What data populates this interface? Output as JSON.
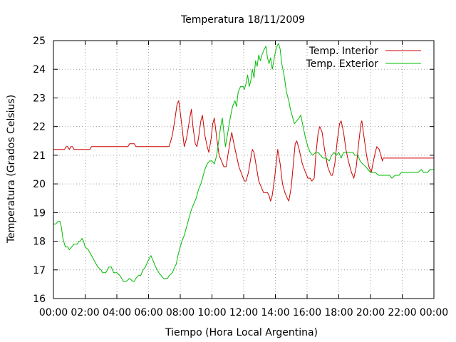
{
  "chart_data": {
    "type": "line",
    "title": "Temperatura 18/11/2009",
    "xlabel": "Tiempo (Hora Local Argentina)",
    "ylabel": "Temperatura (Grados Celsius)",
    "xlim": [
      0,
      24
    ],
    "ylim": [
      16,
      25
    ],
    "grid": true,
    "legend_position": "top-right",
    "x_ticks": [
      {
        "value": 0,
        "label": "00:00"
      },
      {
        "value": 2,
        "label": "02:00"
      },
      {
        "value": 4,
        "label": "04:00"
      },
      {
        "value": 6,
        "label": "06:00"
      },
      {
        "value": 8,
        "label": "08:00"
      },
      {
        "value": 10,
        "label": "10:00"
      },
      {
        "value": 12,
        "label": "12:00"
      },
      {
        "value": 14,
        "label": "14:00"
      },
      {
        "value": 16,
        "label": "16:00"
      },
      {
        "value": 18,
        "label": "18:00"
      },
      {
        "value": 20,
        "label": "20:00"
      },
      {
        "value": 22,
        "label": "22:00"
      },
      {
        "value": 24,
        "label": "00:00"
      }
    ],
    "y_ticks": [
      {
        "value": 16,
        "label": "16"
      },
      {
        "value": 17,
        "label": "17"
      },
      {
        "value": 18,
        "label": "18"
      },
      {
        "value": 19,
        "label": "19"
      },
      {
        "value": 20,
        "label": "20"
      },
      {
        "value": 21,
        "label": "21"
      },
      {
        "value": 22,
        "label": "22"
      },
      {
        "value": 23,
        "label": "23"
      },
      {
        "value": 24,
        "label": "24"
      },
      {
        "value": 25,
        "label": "25"
      }
    ],
    "series": [
      {
        "name": "Temp. Interior",
        "color": "#cc0000",
        "points": [
          [
            0.0,
            21.2
          ],
          [
            0.4,
            21.2
          ],
          [
            0.7,
            21.2
          ],
          [
            0.8,
            21.3
          ],
          [
            0.9,
            21.3
          ],
          [
            1.0,
            21.2
          ],
          [
            1.1,
            21.3
          ],
          [
            1.2,
            21.3
          ],
          [
            1.3,
            21.2
          ],
          [
            1.6,
            21.2
          ],
          [
            2.3,
            21.2
          ],
          [
            2.4,
            21.3
          ],
          [
            4.7,
            21.3
          ],
          [
            4.8,
            21.4
          ],
          [
            5.1,
            21.4
          ],
          [
            5.2,
            21.3
          ],
          [
            7.3,
            21.3
          ],
          [
            7.5,
            21.7
          ],
          [
            7.65,
            22.2
          ],
          [
            7.8,
            22.8
          ],
          [
            7.9,
            22.9
          ],
          [
            8.0,
            22.5
          ],
          [
            8.15,
            21.8
          ],
          [
            8.25,
            21.3
          ],
          [
            8.4,
            21.6
          ],
          [
            8.6,
            22.3
          ],
          [
            8.7,
            22.6
          ],
          [
            8.8,
            22.0
          ],
          [
            8.95,
            21.4
          ],
          [
            9.05,
            21.3
          ],
          [
            9.15,
            21.6
          ],
          [
            9.3,
            22.2
          ],
          [
            9.4,
            22.4
          ],
          [
            9.55,
            21.7
          ],
          [
            9.7,
            21.3
          ],
          [
            9.8,
            21.1
          ],
          [
            9.95,
            21.6
          ],
          [
            10.05,
            22.1
          ],
          [
            10.15,
            22.3
          ],
          [
            10.3,
            21.6
          ],
          [
            10.45,
            21.0
          ],
          [
            10.6,
            20.8
          ],
          [
            10.75,
            20.6
          ],
          [
            10.9,
            20.6
          ],
          [
            11.0,
            21.0
          ],
          [
            11.15,
            21.5
          ],
          [
            11.25,
            21.8
          ],
          [
            11.35,
            21.5
          ],
          [
            11.5,
            21.1
          ],
          [
            11.7,
            20.6
          ],
          [
            11.9,
            20.3
          ],
          [
            12.05,
            20.1
          ],
          [
            12.15,
            20.1
          ],
          [
            12.3,
            20.4
          ],
          [
            12.45,
            20.9
          ],
          [
            12.55,
            21.2
          ],
          [
            12.65,
            21.1
          ],
          [
            12.8,
            20.6
          ],
          [
            12.95,
            20.1
          ],
          [
            13.1,
            19.9
          ],
          [
            13.25,
            19.7
          ],
          [
            13.5,
            19.7
          ],
          [
            13.6,
            19.6
          ],
          [
            13.7,
            19.4
          ],
          [
            13.8,
            19.6
          ],
          [
            13.95,
            20.2
          ],
          [
            14.05,
            20.7
          ],
          [
            14.15,
            21.2
          ],
          [
            14.3,
            20.7
          ],
          [
            14.45,
            20.0
          ],
          [
            14.6,
            19.7
          ],
          [
            14.75,
            19.5
          ],
          [
            14.85,
            19.4
          ],
          [
            15.0,
            19.9
          ],
          [
            15.15,
            20.8
          ],
          [
            15.25,
            21.4
          ],
          [
            15.35,
            21.5
          ],
          [
            15.5,
            21.2
          ],
          [
            15.7,
            20.7
          ],
          [
            15.9,
            20.4
          ],
          [
            16.05,
            20.2
          ],
          [
            16.2,
            20.2
          ],
          [
            16.3,
            20.1
          ],
          [
            16.45,
            20.2
          ],
          [
            16.55,
            21.0
          ],
          [
            16.7,
            21.8
          ],
          [
            16.8,
            22.0
          ],
          [
            16.95,
            21.8
          ],
          [
            17.1,
            21.2
          ],
          [
            17.3,
            20.6
          ],
          [
            17.5,
            20.3
          ],
          [
            17.6,
            20.3
          ],
          [
            17.75,
            20.7
          ],
          [
            17.9,
            21.5
          ],
          [
            18.05,
            22.1
          ],
          [
            18.15,
            22.2
          ],
          [
            18.3,
            21.8
          ],
          [
            18.45,
            21.2
          ],
          [
            18.6,
            20.8
          ],
          [
            18.8,
            20.4
          ],
          [
            18.95,
            20.2
          ],
          [
            19.1,
            20.6
          ],
          [
            19.25,
            21.4
          ],
          [
            19.4,
            22.1
          ],
          [
            19.45,
            22.2
          ],
          [
            19.6,
            21.6
          ],
          [
            19.75,
            21.0
          ],
          [
            19.9,
            20.6
          ],
          [
            20.05,
            20.4
          ],
          [
            20.15,
            20.7
          ],
          [
            20.3,
            21.1
          ],
          [
            20.4,
            21.3
          ],
          [
            20.55,
            21.2
          ],
          [
            20.65,
            21.0
          ],
          [
            20.75,
            20.8
          ],
          [
            20.8,
            20.9
          ],
          [
            24.0,
            20.9
          ]
        ]
      },
      {
        "name": "Temp. Exterior",
        "color": "#00bb00",
        "points": [
          [
            0.0,
            18.6
          ],
          [
            0.15,
            18.6
          ],
          [
            0.3,
            18.7
          ],
          [
            0.4,
            18.7
          ],
          [
            0.5,
            18.5
          ],
          [
            0.6,
            18.1
          ],
          [
            0.75,
            17.8
          ],
          [
            0.9,
            17.8
          ],
          [
            1.0,
            17.7
          ],
          [
            1.15,
            17.8
          ],
          [
            1.3,
            17.9
          ],
          [
            1.5,
            17.9
          ],
          [
            1.6,
            18.0
          ],
          [
            1.7,
            18.0
          ],
          [
            1.8,
            18.1
          ],
          [
            1.9,
            18.0
          ],
          [
            2.0,
            17.8
          ],
          [
            2.2,
            17.7
          ],
          [
            2.4,
            17.5
          ],
          [
            2.6,
            17.3
          ],
          [
            2.8,
            17.1
          ],
          [
            3.0,
            17.0
          ],
          [
            3.1,
            16.9
          ],
          [
            3.3,
            16.9
          ],
          [
            3.4,
            17.0
          ],
          [
            3.5,
            17.1
          ],
          [
            3.65,
            17.1
          ],
          [
            3.8,
            16.9
          ],
          [
            4.0,
            16.9
          ],
          [
            4.2,
            16.8
          ],
          [
            4.3,
            16.7
          ],
          [
            4.4,
            16.6
          ],
          [
            4.6,
            16.6
          ],
          [
            4.8,
            16.7
          ],
          [
            5.0,
            16.6
          ],
          [
            5.1,
            16.6
          ],
          [
            5.2,
            16.7
          ],
          [
            5.35,
            16.8
          ],
          [
            5.5,
            16.8
          ],
          [
            5.65,
            17.0
          ],
          [
            5.8,
            17.1
          ],
          [
            5.95,
            17.3
          ],
          [
            6.05,
            17.4
          ],
          [
            6.15,
            17.5
          ],
          [
            6.3,
            17.3
          ],
          [
            6.45,
            17.1
          ],
          [
            6.65,
            16.9
          ],
          [
            6.8,
            16.8
          ],
          [
            6.95,
            16.7
          ],
          [
            7.2,
            16.7
          ],
          [
            7.3,
            16.8
          ],
          [
            7.5,
            16.9
          ],
          [
            7.65,
            17.1
          ],
          [
            7.75,
            17.2
          ],
          [
            7.85,
            17.5
          ],
          [
            8.0,
            17.8
          ],
          [
            8.1,
            18.0
          ],
          [
            8.25,
            18.2
          ],
          [
            8.4,
            18.5
          ],
          [
            8.55,
            18.8
          ],
          [
            8.7,
            19.1
          ],
          [
            8.85,
            19.3
          ],
          [
            9.0,
            19.5
          ],
          [
            9.15,
            19.8
          ],
          [
            9.3,
            20.0
          ],
          [
            9.45,
            20.3
          ],
          [
            9.55,
            20.5
          ],
          [
            9.7,
            20.7
          ],
          [
            9.85,
            20.8
          ],
          [
            10.0,
            20.8
          ],
          [
            10.15,
            20.7
          ],
          [
            10.3,
            21.0
          ],
          [
            10.4,
            21.4
          ],
          [
            10.55,
            22.0
          ],
          [
            10.65,
            22.3
          ],
          [
            10.75,
            21.8
          ],
          [
            10.85,
            21.3
          ],
          [
            11.0,
            21.8
          ],
          [
            11.15,
            22.3
          ],
          [
            11.3,
            22.7
          ],
          [
            11.45,
            22.9
          ],
          [
            11.55,
            22.7
          ],
          [
            11.65,
            23.2
          ],
          [
            11.8,
            23.4
          ],
          [
            11.95,
            23.4
          ],
          [
            12.05,
            23.3
          ],
          [
            12.15,
            23.5
          ],
          [
            12.25,
            23.8
          ],
          [
            12.35,
            23.4
          ],
          [
            12.45,
            23.6
          ],
          [
            12.55,
            24.0
          ],
          [
            12.65,
            23.7
          ],
          [
            12.75,
            24.3
          ],
          [
            12.85,
            24.1
          ],
          [
            12.95,
            24.5
          ],
          [
            13.05,
            24.3
          ],
          [
            13.15,
            24.5
          ],
          [
            13.3,
            24.7
          ],
          [
            13.4,
            24.8
          ],
          [
            13.5,
            24.4
          ],
          [
            13.6,
            24.2
          ],
          [
            13.7,
            24.4
          ],
          [
            13.8,
            24.0
          ],
          [
            13.9,
            24.3
          ],
          [
            14.0,
            24.6
          ],
          [
            14.1,
            24.8
          ],
          [
            14.2,
            24.9
          ],
          [
            14.3,
            24.7
          ],
          [
            14.4,
            24.2
          ],
          [
            14.55,
            23.8
          ],
          [
            14.7,
            23.2
          ],
          [
            14.85,
            22.9
          ],
          [
            14.95,
            22.6
          ],
          [
            15.1,
            22.3
          ],
          [
            15.2,
            22.1
          ],
          [
            15.35,
            22.2
          ],
          [
            15.5,
            22.3
          ],
          [
            15.6,
            22.4
          ],
          [
            15.75,
            22.0
          ],
          [
            15.9,
            21.6
          ],
          [
            16.05,
            21.3
          ],
          [
            16.2,
            21.1
          ],
          [
            16.35,
            21.0
          ],
          [
            16.55,
            21.1
          ],
          [
            16.7,
            21.1
          ],
          [
            16.85,
            21.0
          ],
          [
            17.0,
            20.9
          ],
          [
            17.2,
            20.9
          ],
          [
            17.4,
            20.8
          ],
          [
            17.55,
            21.0
          ],
          [
            17.7,
            21.1
          ],
          [
            17.85,
            21.0
          ],
          [
            18.0,
            21.1
          ],
          [
            18.15,
            20.9
          ],
          [
            18.3,
            21.1
          ],
          [
            18.6,
            21.1
          ],
          [
            18.9,
            21.1
          ],
          [
            19.0,
            21.0
          ],
          [
            19.2,
            21.0
          ],
          [
            19.35,
            20.8
          ],
          [
            19.5,
            20.7
          ],
          [
            19.7,
            20.6
          ],
          [
            19.85,
            20.5
          ],
          [
            20.0,
            20.4
          ],
          [
            20.3,
            20.4
          ],
          [
            20.5,
            20.3
          ],
          [
            21.0,
            20.3
          ],
          [
            21.2,
            20.3
          ],
          [
            21.35,
            20.2
          ],
          [
            21.55,
            20.3
          ],
          [
            21.8,
            20.3
          ],
          [
            21.95,
            20.4
          ],
          [
            22.5,
            20.4
          ],
          [
            23.0,
            20.4
          ],
          [
            23.2,
            20.5
          ],
          [
            23.35,
            20.4
          ],
          [
            23.6,
            20.4
          ],
          [
            23.75,
            20.5
          ],
          [
            24.0,
            20.5
          ]
        ]
      }
    ]
  }
}
